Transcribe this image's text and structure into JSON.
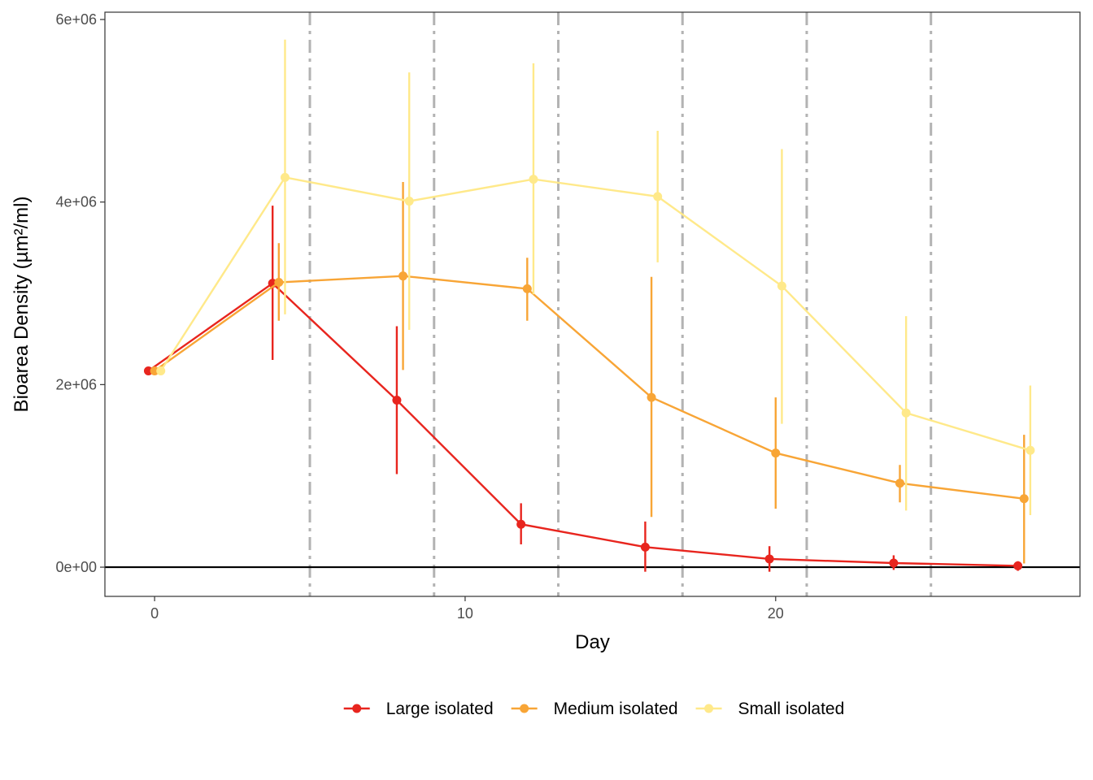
{
  "chart_data": {
    "type": "line",
    "xlabel": "Day",
    "ylabel": "Bioarea Density (µm²/ml)",
    "xlim": [
      -1.6,
      29.8
    ],
    "ylim": [
      -320000,
      6080000
    ],
    "x_ticks": [
      0,
      10,
      20
    ],
    "x_tick_labels": [
      "0",
      "10",
      "20"
    ],
    "y_ticks": [
      0,
      2000000,
      4000000,
      6000000
    ],
    "y_tick_labels": [
      "0e+00",
      "2e+06",
      "4e+06",
      "6e+06"
    ],
    "reference_hline": 0,
    "vlines": [
      5,
      9,
      13,
      17,
      21,
      25
    ],
    "vline_color": "#b3b3b3",
    "grid": false,
    "legend_position": "bottom",
    "series": [
      {
        "name": "Large isolated",
        "color": "#e8251e",
        "points": [
          {
            "x": -0.2,
            "y": 2150000,
            "lo": 2150000,
            "hi": 2150000
          },
          {
            "x": 3.8,
            "y": 3110000,
            "lo": 2270000,
            "hi": 3960000
          },
          {
            "x": 7.8,
            "y": 1830000,
            "lo": 1020000,
            "hi": 2640000
          },
          {
            "x": 11.8,
            "y": 470000,
            "lo": 250000,
            "hi": 700000
          },
          {
            "x": 15.8,
            "y": 220000,
            "lo": -50000,
            "hi": 500000
          },
          {
            "x": 19.8,
            "y": 90000,
            "lo": -50000,
            "hi": 230000
          },
          {
            "x": 23.8,
            "y": 45000,
            "lo": -30000,
            "hi": 130000
          },
          {
            "x": 27.8,
            "y": 15000,
            "lo": -40000,
            "hi": 65000
          }
        ]
      },
      {
        "name": "Medium isolated",
        "color": "#f8a536",
        "points": [
          {
            "x": 0.0,
            "y": 2150000,
            "lo": 2150000,
            "hi": 2150000
          },
          {
            "x": 4.0,
            "y": 3120000,
            "lo": 2700000,
            "hi": 3550000
          },
          {
            "x": 8.0,
            "y": 3190000,
            "lo": 2160000,
            "hi": 4220000
          },
          {
            "x": 12.0,
            "y": 3050000,
            "lo": 2700000,
            "hi": 3390000
          },
          {
            "x": 16.0,
            "y": 1860000,
            "lo": 550000,
            "hi": 3180000
          },
          {
            "x": 20.0,
            "y": 1250000,
            "lo": 640000,
            "hi": 1860000
          },
          {
            "x": 24.0,
            "y": 920000,
            "lo": 710000,
            "hi": 1120000
          },
          {
            "x": 28.0,
            "y": 750000,
            "lo": 40000,
            "hi": 1450000
          }
        ]
      },
      {
        "name": "Small isolated",
        "color": "#ffe98a",
        "points": [
          {
            "x": 0.2,
            "y": 2150000,
            "lo": 2150000,
            "hi": 2150000
          },
          {
            "x": 4.2,
            "y": 4270000,
            "lo": 2770000,
            "hi": 5780000
          },
          {
            "x": 8.2,
            "y": 4010000,
            "lo": 2600000,
            "hi": 5420000
          },
          {
            "x": 12.2,
            "y": 4250000,
            "lo": 2990000,
            "hi": 5520000
          },
          {
            "x": 16.2,
            "y": 4060000,
            "lo": 3340000,
            "hi": 4780000
          },
          {
            "x": 20.2,
            "y": 3080000,
            "lo": 1570000,
            "hi": 4580000
          },
          {
            "x": 24.2,
            "y": 1690000,
            "lo": 620000,
            "hi": 2750000
          },
          {
            "x": 28.2,
            "y": 1280000,
            "lo": 570000,
            "hi": 1990000
          }
        ]
      }
    ]
  }
}
